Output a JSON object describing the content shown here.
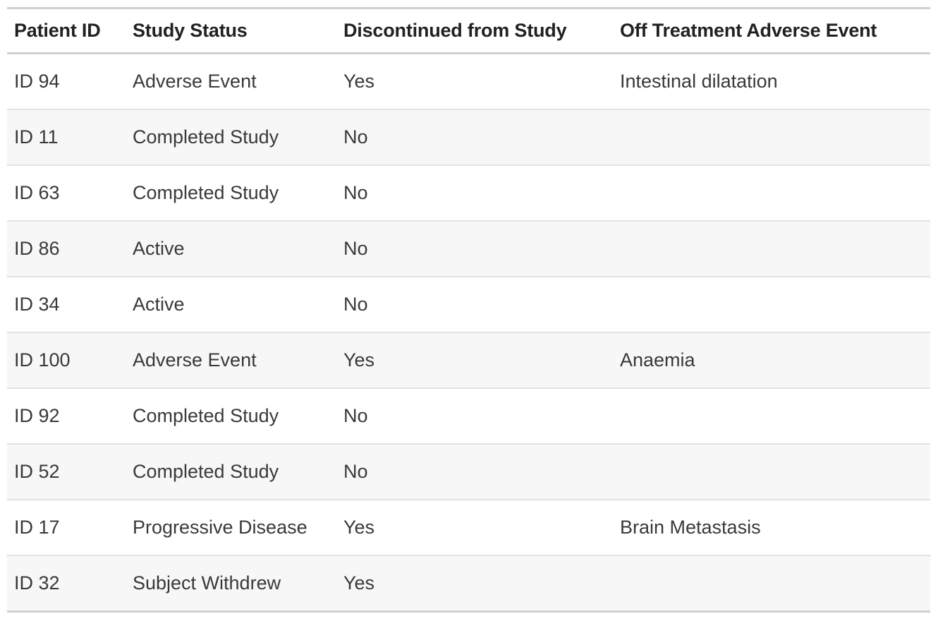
{
  "table": {
    "columns": [
      {
        "label": "Patient ID"
      },
      {
        "label": "Study Status"
      },
      {
        "label": "Discontinued from Study"
      },
      {
        "label": "Off Treatment Adverse Event"
      }
    ],
    "rows": [
      {
        "patient_id": "ID 94",
        "study_status": "Adverse Event",
        "discontinued": "Yes",
        "off_treatment_adverse_event": "Intestinal dilatation"
      },
      {
        "patient_id": "ID 11",
        "study_status": "Completed Study",
        "discontinued": "No",
        "off_treatment_adverse_event": ""
      },
      {
        "patient_id": "ID 63",
        "study_status": "Completed Study",
        "discontinued": "No",
        "off_treatment_adverse_event": ""
      },
      {
        "patient_id": "ID 86",
        "study_status": "Active",
        "discontinued": "No",
        "off_treatment_adverse_event": ""
      },
      {
        "patient_id": "ID 34",
        "study_status": "Active",
        "discontinued": "No",
        "off_treatment_adverse_event": ""
      },
      {
        "patient_id": "ID 100",
        "study_status": "Adverse Event",
        "discontinued": "Yes",
        "off_treatment_adverse_event": "Anaemia"
      },
      {
        "patient_id": "ID 92",
        "study_status": "Completed Study",
        "discontinued": "No",
        "off_treatment_adverse_event": ""
      },
      {
        "patient_id": "ID 52",
        "study_status": "Completed Study",
        "discontinued": "No",
        "off_treatment_adverse_event": ""
      },
      {
        "patient_id": "ID 17",
        "study_status": "Progressive Disease",
        "discontinued": "Yes",
        "off_treatment_adverse_event": "Brain Metastasis"
      },
      {
        "patient_id": "ID 32",
        "study_status": "Subject Withdrew",
        "discontinued": "Yes",
        "off_treatment_adverse_event": ""
      }
    ],
    "colors": {
      "header_text": "#212120",
      "body_text": "#3a3938",
      "heavy_border": "#d0d0d0",
      "row_separator": "#e2e2e2",
      "stripe_background": "#f7f7f7"
    }
  }
}
